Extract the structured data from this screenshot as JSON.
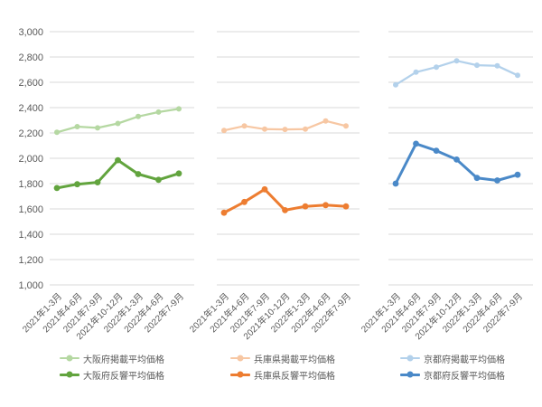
{
  "chart_data": {
    "type": "line",
    "title": "",
    "xlabel": "",
    "ylabel": "",
    "ylim": [
      1000,
      3000
    ],
    "grid": true,
    "legend_position": "bottom",
    "axis_text_color": "#595959",
    "grid_color": "#dadada",
    "categories": [
      "2021年1-3月",
      "2021年4-6月",
      "2021年7-9月",
      "2021年10-12月",
      "2022年1-3月",
      "2022年4-6月",
      "2022年7-9月"
    ],
    "y_ticks": [
      {
        "value": 3000,
        "label": "3,000"
      },
      {
        "value": 2800,
        "label": "2,800"
      },
      {
        "value": 2600,
        "label": "2,600"
      },
      {
        "value": 2400,
        "label": "2,400"
      },
      {
        "value": 2200,
        "label": "2,200"
      },
      {
        "value": 2000,
        "label": "2,000"
      },
      {
        "value": 1800,
        "label": "1,800"
      },
      {
        "value": 1600,
        "label": "1,600"
      },
      {
        "value": 1400,
        "label": "1,400"
      },
      {
        "value": 1200,
        "label": "1,200"
      },
      {
        "value": 1000,
        "label": "1,000"
      }
    ],
    "panels": [
      {
        "id": "osaka",
        "series": [
          {
            "id": "listed-average-price",
            "name": "大阪府掲載平均価格",
            "color": "#b5d8a2",
            "values": [
              2205,
              2250,
              2240,
              2275,
              2330,
              2365,
              2390
            ]
          },
          {
            "id": "response-average-price",
            "name": "大阪府反響平均価格",
            "color": "#62a43e",
            "values": [
              1765,
              1795,
              1810,
              1985,
              1875,
              1830,
              1880
            ]
          }
        ]
      },
      {
        "id": "hyogo",
        "series": [
          {
            "id": "listed-average-price",
            "name": "兵庫県掲載平均価格",
            "color": "#f7c7a3",
            "values": [
              2220,
              2255,
              2230,
              2228,
              2230,
              2295,
              2255
            ]
          },
          {
            "id": "response-average-price",
            "name": "兵庫県反響平均価格",
            "color": "#ed7d31",
            "values": [
              1570,
              1655,
              1755,
              1590,
              1620,
              1630,
              1620
            ]
          }
        ]
      },
      {
        "id": "kyoto",
        "series": [
          {
            "id": "listed-average-price",
            "name": "京都府掲載平均価格",
            "color": "#b3d1eb",
            "values": [
              2580,
              2680,
              2720,
              2770,
              2735,
              2730,
              2655
            ]
          },
          {
            "id": "response-average-price",
            "name": "京都府反響平均価格",
            "color": "#4a89c8",
            "values": [
              1800,
              2115,
              2060,
              1990,
              1845,
              1825,
              1870
            ]
          }
        ]
      }
    ]
  }
}
